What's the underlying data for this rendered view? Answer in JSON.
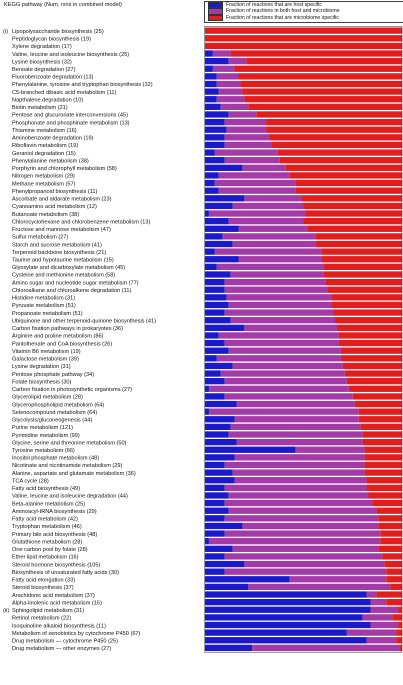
{
  "chart_data": {
    "type": "bar",
    "orientation": "horizontal",
    "stacked": "100%",
    "header": "KEGG pathway (Num. rxns in combined model)",
    "section_labels": [
      {
        "label": "(i)",
        "first_category_index": 0
      },
      {
        "label": "(ii)",
        "first_category_index": 76
      }
    ],
    "legend": [
      {
        "name": "Fraction of reactions that are host specific",
        "color": "#1a1acc"
      },
      {
        "name": "Fraction of reactions in both host and microbiome",
        "color": "#a43aa8"
      },
      {
        "name": "Fraction of reactions that are microbiome specific",
        "color": "#e21d1d"
      }
    ],
    "xlim": [
      0,
      1
    ],
    "categories": [
      "Lipopolysaccharide biosynthesis (25)",
      "Peptidoglycan biosynthesis (19)",
      "Xylene degradation (17)",
      "Valine, leucine and isoleucine biosynthesis (25)",
      "Lysine biosynthesis (32)",
      "Benoate degradation (27)",
      "Fluorobenzoate degradation (13)",
      "Phenylalanine, tyrosine and tryptophan biosynthesis (32)",
      "C5-branched dibasic acid metabolism (11)",
      "Napthalene degradation (10)",
      "Biotin metabolism (21)",
      "Pentose and glucuronate interconversions (45)",
      "Phosphonate and phosphinate metabolism (13)",
      "Thiamine metabolism (16)",
      "Aminobenzoate degradation (19)",
      "Riboflavin metabolism (19)",
      "Geraniol degradation (15)",
      "Phenylalanine metabolism (38)",
      "Porphyrin and chlorophyll metabolism (58)",
      "Nitrogen metabolism (29)",
      "Methane metabolism (57)",
      "Phenylpropanoid biosynthesis (11)",
      "Ascorbate and aldarate metabolism (23)",
      "Cyanoamino acid metabolism (12)",
      "Butanoate metabolism (38)",
      "Chlorocyclohexane and chlorobenzene metabolism (13)",
      "Fructose and mannose metabolism (47)",
      "Sulfur metabolism (27)",
      "Starch and sucrose metabolism (41)",
      "Terpenoid backbone biosynthesis (21)",
      "Taurine and hypotaurine metabolism (15)",
      "Glyoxylate and dicarboxylate metabolism (45)",
      "Cysteine and methionine metabolism (58)",
      "Amino sugar and nucleotide sugar metabolism (77)",
      "Chloroalkane and chloroalkene degradation (11)",
      "Histidine metabolism (31)",
      "Pyruvate metabolism (51)",
      "Propanoate metabolism (51)",
      "Ubiquinone and other terpenoid-quinone biosynthesis (41)",
      "Carbon fixation pathways in prokaryotes (36)",
      "Arginine and proline metabolism (86)",
      "Pantothenate and CoA biosynthesis (26)",
      "Vitamin B6 metabolism (19)",
      "Galactose metabolism (39)",
      "Lysine degradation (31)",
      "Pentose phosphate pathway (34)",
      "Folate biosynthesis (30)",
      "Carbon fixation in photosynthetic organisms (27)",
      "Glycerolipid metabolism (28)",
      "Glycerophospholipid metabolism (64)",
      "Selenocompound metabolism (64)",
      "Glycolysis/gluconeogenesis (44)",
      "Purine metabolism (121)",
      "Pyrimidine metabolism (99)",
      "Glycine, serine and threonine metabolism (50)",
      "Tyrosine metabolism (66)",
      "Inositol phosphate metabolism (48)",
      "Nicotinate and nicotinamide metabolism (29)",
      "Alanine, aspartate and glutamate metabolism (36)",
      "TCA cycle (28)",
      "Fatty acid biosynthesis (49)",
      "Valine, leucine and isoleucine degradation (44)",
      "Beta-alanine metabolism (25)",
      "Aminoacyl-tRNA biosynthesis (29)",
      "Fatty acid metabolism (42)",
      "Tryptophan metabolism (46)",
      "Primary bile acid biosynthesis (48)",
      "Glutathione metabolism (28)",
      "One carbon pool by folate (28)",
      "Ether lipid metabolism (16)",
      "Steroid hormone biosynthesis (105)",
      "Biosynthesis of unsaturated fatty acids (30)",
      "Fatty acid elongation (33)",
      "Steroid biosynthesis (37)",
      "Arachidonic acid metabolism (37)",
      "Alpha-linolenic acid metabolism (15)",
      "Sphingolipid metabolism (31)",
      "Retinol metabolism (22)",
      "Isoquinoline alkaloid biosynthesis (11)",
      "Metabolism of xenobiotics by cytochrome P450 (67)",
      "Drug metabolism — cytochrome P450 (25)",
      "Drug metabolism — other enzymes (27)"
    ],
    "series": [
      {
        "name": "Fraction of reactions that are host specific",
        "values": [
          0,
          0,
          0,
          0.04,
          0.12,
          0.04,
          0.06,
          0.06,
          0.07,
          0.06,
          0.08,
          0.12,
          0.1,
          0.11,
          0.1,
          0.1,
          0.05,
          0.1,
          0.19,
          0.07,
          0.05,
          0.07,
          0.2,
          0.14,
          0.02,
          0.12,
          0.17,
          0.09,
          0.14,
          0.05,
          0.17,
          0.06,
          0.13,
          0.1,
          0.1,
          0.11,
          0.12,
          0.1,
          0.13,
          0.2,
          0.07,
          0.1,
          0.12,
          0.06,
          0.14,
          0.08,
          0.1,
          0.02,
          0.1,
          0.16,
          0.02,
          0.15,
          0.13,
          0.12,
          0.16,
          0.46,
          0.15,
          0.1,
          0.14,
          0.15,
          0.1,
          0.12,
          0.1,
          0.12,
          0.1,
          0.19,
          0.1,
          0.02,
          0.14,
          0.1,
          0.2,
          0.1,
          0.43,
          0.22,
          0.82,
          0.84,
          0.84,
          0.8,
          0.84,
          0.72,
          0.82,
          0.24
        ]
      },
      {
        "name": "Fraction of reactions in both host and microbiome",
        "values": [
          0,
          0,
          0,
          0.09,
          0.09,
          0.11,
          0.11,
          0.12,
          0.12,
          0.14,
          0.14,
          0.14,
          0.21,
          0.2,
          0.23,
          0.24,
          0.32,
          0.28,
          0.22,
          0.36,
          0.41,
          0.39,
          0.29,
          0.36,
          0.49,
          0.38,
          0.35,
          0.47,
          0.42,
          0.54,
          0.42,
          0.54,
          0.47,
          0.51,
          0.52,
          0.53,
          0.52,
          0.55,
          0.53,
          0.47,
          0.61,
          0.58,
          0.57,
          0.63,
          0.56,
          0.63,
          0.62,
          0.71,
          0.65,
          0.6,
          0.76,
          0.63,
          0.66,
          0.68,
          0.64,
          0.35,
          0.66,
          0.71,
          0.67,
          0.67,
          0.72,
          0.71,
          0.75,
          0.75,
          0.78,
          0.69,
          0.79,
          0.87,
          0.74,
          0.8,
          0.71,
          0.82,
          0.49,
          0.72,
          0.05,
          0.08,
          0.14,
          0.15,
          0.14,
          0.25,
          0.15,
          0.75
        ]
      },
      {
        "name": "Fraction of reactions that are microbiome specific",
        "values": [
          1,
          1,
          1,
          0.87,
          0.79,
          0.85,
          0.83,
          0.82,
          0.81,
          0.8,
          0.78,
          0.74,
          0.69,
          0.69,
          0.67,
          0.66,
          0.63,
          0.62,
          0.59,
          0.57,
          0.54,
          0.54,
          0.51,
          0.5,
          0.49,
          0.5,
          0.48,
          0.44,
          0.44,
          0.41,
          0.41,
          0.4,
          0.4,
          0.39,
          0.38,
          0.36,
          0.36,
          0.35,
          0.34,
          0.33,
          0.32,
          0.32,
          0.31,
          0.31,
          0.3,
          0.29,
          0.28,
          0.27,
          0.25,
          0.24,
          0.22,
          0.22,
          0.21,
          0.2,
          0.2,
          0.19,
          0.19,
          0.19,
          0.19,
          0.18,
          0.18,
          0.17,
          0.15,
          0.13,
          0.12,
          0.12,
          0.11,
          0.11,
          0.12,
          0.1,
          0.09,
          0.08,
          0.08,
          0.06,
          0.13,
          0.08,
          0.02,
          0.05,
          0.02,
          0.03,
          0.03,
          0.01
        ]
      }
    ]
  }
}
